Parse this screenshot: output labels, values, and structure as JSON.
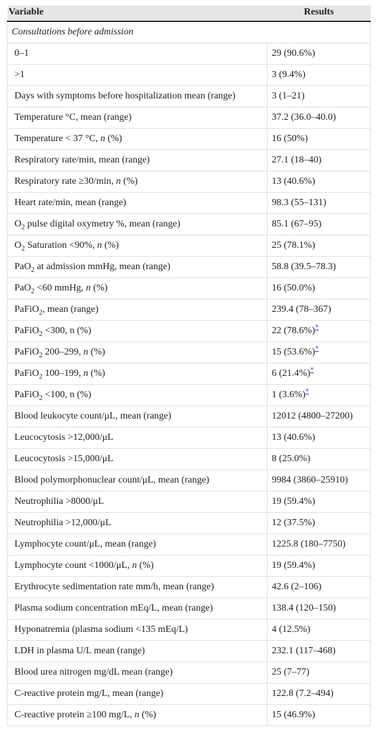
{
  "table": {
    "header": {
      "variable": "Variable",
      "results": "Results"
    },
    "section": "Consultations before admission",
    "rows": [
      {
        "label": [
          "0–1"
        ],
        "result": [
          "29 (90.6%)"
        ]
      },
      {
        "label": [
          ">1"
        ],
        "result": [
          "3 (9.4%)"
        ]
      },
      {
        "label": [
          "Days with symptoms before hospitalization mean (range)"
        ],
        "result": [
          "3 (1–21)"
        ]
      },
      {
        "label": [
          "Temperature °C, mean (range)"
        ],
        "result": [
          "37.2 (36.0–40.0)"
        ]
      },
      {
        "label": [
          "Temperature < 37 °C, ",
          {
            "text": "n",
            "style": "i"
          },
          " (%)"
        ],
        "result": [
          "16 (50%)"
        ]
      },
      {
        "label": [
          "Respiratory rate/min, mean (range)"
        ],
        "result": [
          "27.1 (18–40)"
        ]
      },
      {
        "label": [
          "Respiratory rate ≥30/min, ",
          {
            "text": "n",
            "style": "i"
          },
          " (%)"
        ],
        "result": [
          "13 (40.6%)"
        ]
      },
      {
        "label": [
          "Heart rate/min, mean (range)"
        ],
        "result": [
          "98.3 (55–131)"
        ]
      },
      {
        "label": [
          "O",
          {
            "text": "2",
            "style": "sub"
          },
          " pulse digital oxymetry %, mean (range)"
        ],
        "result": [
          "85.1 (67–95)"
        ]
      },
      {
        "label": [
          "O",
          {
            "text": "2",
            "style": "sub"
          },
          " Saturation <90%, ",
          {
            "text": "n",
            "style": "i"
          },
          " (%)"
        ],
        "result": [
          "25 (78.1%)"
        ]
      },
      {
        "label": [
          "PaO",
          {
            "text": "2",
            "style": "sub"
          },
          " at admission mmHg, mean (range)"
        ],
        "result": [
          "58.8 (39.5–78.3)"
        ]
      },
      {
        "label": [
          "PaO",
          {
            "text": "2",
            "style": "sub"
          },
          " <60 mmHg, ",
          {
            "text": "n",
            "style": "i"
          },
          " (%)"
        ],
        "result": [
          "16 (50.0%)"
        ]
      },
      {
        "label": [
          "PaFiO",
          {
            "text": "2",
            "style": "sub"
          },
          ", mean (range)"
        ],
        "result": [
          "239.4 (78–367)"
        ]
      },
      {
        "label": [
          "PaFiO",
          {
            "text": "2",
            "style": "sub"
          },
          " <300, n (%)"
        ],
        "result": [
          "22 (78.6%)",
          {
            "text": "*",
            "style": "note"
          }
        ]
      },
      {
        "label": [
          "PaFiO",
          {
            "text": "2",
            "style": "sub"
          },
          " 200–299, ",
          {
            "text": "n",
            "style": "i"
          },
          " (%)"
        ],
        "result": [
          "15 (53.6%)",
          {
            "text": "*",
            "style": "note"
          }
        ]
      },
      {
        "label": [
          "PaFiO",
          {
            "text": "2",
            "style": "sub"
          },
          " 100–199, ",
          {
            "text": "n",
            "style": "i"
          },
          " (%)"
        ],
        "result": [
          "6 (21.4%)",
          {
            "text": "*",
            "style": "note"
          }
        ]
      },
      {
        "label": [
          "PaFiO",
          {
            "text": "2",
            "style": "sub"
          },
          " <100, n (%)"
        ],
        "result": [
          "1 (3.6%)",
          {
            "text": "*",
            "style": "note"
          }
        ]
      },
      {
        "label": [
          "Blood leukocyte count/μL, mean (range)"
        ],
        "result": [
          "12012 (4800–27200)"
        ]
      },
      {
        "label": [
          "Leucocytosis >12,000/μL"
        ],
        "result": [
          "13 (40.6%)"
        ]
      },
      {
        "label": [
          "Leucocytosis >15,000/μL"
        ],
        "result": [
          "8 (25.0%)"
        ]
      },
      {
        "label": [
          "Blood polymorphonuclear count/μL, mean (range)"
        ],
        "result": [
          "9984 (3860–25910)"
        ]
      },
      {
        "label": [
          "Neutrophilia >8000/μL"
        ],
        "result": [
          "19 (59.4%)"
        ]
      },
      {
        "label": [
          "Neutrophilia >12,000/μL"
        ],
        "result": [
          "12 (37.5%)"
        ]
      },
      {
        "label": [
          "Lymphocyte count/μL, mean (range)"
        ],
        "result": [
          "1225.8 (180–7750)"
        ]
      },
      {
        "label": [
          "Lymphocyte count <1000/μL, ",
          {
            "text": "n",
            "style": "i"
          },
          " (%)"
        ],
        "result": [
          "19 (59.4%)"
        ]
      },
      {
        "label": [
          "Erythrocyte sedimentation rate mm/h, mean (range)"
        ],
        "result": [
          "42.6 (2–106)"
        ]
      },
      {
        "label": [
          "Plasma sodium concentration mEq/L, mean (range)"
        ],
        "result": [
          "138.4 (120–150)"
        ]
      },
      {
        "label": [
          "Hyponatremia (plasma sodium <135 mEq/L)"
        ],
        "result": [
          "4 (12.5%)"
        ]
      },
      {
        "label": [
          "LDH in plasma U/L mean (range)"
        ],
        "result": [
          "232.1 (117–468)"
        ]
      },
      {
        "label": [
          "Blood urea nitrogen mg/dL mean (range)"
        ],
        "result": [
          "25 (7–77)"
        ]
      },
      {
        "label": [
          "C-reactive protein mg/L, mean (range)"
        ],
        "result": [
          "122.8 (7.2–494)"
        ]
      },
      {
        "label": [
          "C-reactive protein ≥100 mg/L, ",
          {
            "text": "n",
            "style": "i"
          },
          " (%)"
        ],
        "result": [
          "15 (46.9%)"
        ]
      }
    ]
  }
}
